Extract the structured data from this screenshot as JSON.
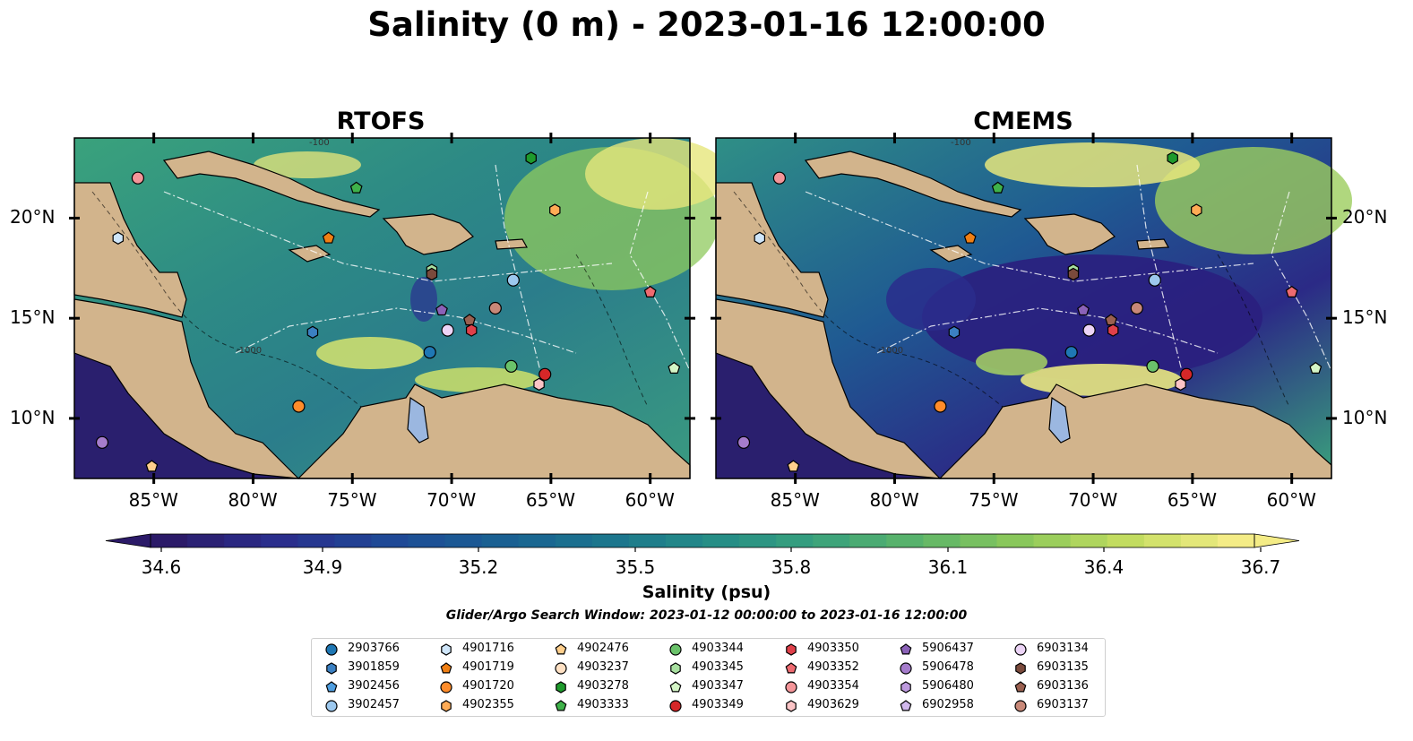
{
  "title": "Salinity (0 m) - 2023-01-16 12:00:00",
  "panels": [
    {
      "title": "RTOFS"
    },
    {
      "title": "CMEMS"
    }
  ],
  "map": {
    "lon_range": [
      -89,
      -58
    ],
    "lat_range": [
      7,
      24
    ],
    "lon_ticks": [
      {
        "value": -85,
        "label": "85°W"
      },
      {
        "value": -80,
        "label": "80°W"
      },
      {
        "value": -75,
        "label": "75°W"
      },
      {
        "value": -70,
        "label": "70°W"
      },
      {
        "value": -65,
        "label": "65°W"
      },
      {
        "value": -60,
        "label": "60°W"
      }
    ],
    "lat_ticks": [
      {
        "value": 10,
        "label": "10°N"
      },
      {
        "value": 15,
        "label": "15°N"
      },
      {
        "value": 20,
        "label": "20°N"
      }
    ],
    "contour_labels": [
      "-100",
      "-1000"
    ],
    "colors": {
      "ocean_deep": "#2a1f6e",
      "land": "#d2b48c",
      "lake": "#9bb7e0"
    }
  },
  "colorbar": {
    "label": "Salinity (psu)",
    "ticks": [
      "34.6",
      "34.9",
      "35.2",
      "35.5",
      "35.8",
      "36.1",
      "36.4",
      "36.7"
    ],
    "colors": [
      "#2b1a68",
      "#2a2d8c",
      "#1f4796",
      "#1a5e93",
      "#1b738e",
      "#238a88",
      "#37a07e",
      "#5bb46a",
      "#8cc85a",
      "#c4dd60",
      "#f4ec86"
    ]
  },
  "search_window": "Glider/Argo Search Window: 2023-01-12 00:00:00 to 2023-01-16 12:00:00",
  "legend": [
    {
      "id": "2903766",
      "marker": "circle",
      "color": "#1f77b4"
    },
    {
      "id": "3901859",
      "marker": "hexagon",
      "color": "#3b80c2"
    },
    {
      "id": "3902456",
      "marker": "pentagon",
      "color": "#4f9ee0"
    },
    {
      "id": "3902457",
      "marker": "circle",
      "color": "#9cc8ee"
    },
    {
      "id": "4901716",
      "marker": "hexagon",
      "color": "#cfe6fa"
    },
    {
      "id": "4901719",
      "marker": "pentagon",
      "color": "#f07f14"
    },
    {
      "id": "4901720",
      "marker": "circle",
      "color": "#ff8c2a"
    },
    {
      "id": "4902355",
      "marker": "hexagon",
      "color": "#ffab55"
    },
    {
      "id": "4902476",
      "marker": "pentagon",
      "color": "#ffcf8c"
    },
    {
      "id": "4903237",
      "marker": "circle",
      "color": "#ffe1c4"
    },
    {
      "id": "4903278",
      "marker": "hexagon",
      "color": "#1e9a2c"
    },
    {
      "id": "4903333",
      "marker": "pentagon",
      "color": "#3fb24a"
    },
    {
      "id": "4903344",
      "marker": "circle",
      "color": "#6ac26a"
    },
    {
      "id": "4903345",
      "marker": "hexagon",
      "color": "#a8e0a0"
    },
    {
      "id": "4903347",
      "marker": "pentagon",
      "color": "#d4f5c6"
    },
    {
      "id": "4903349",
      "marker": "circle",
      "color": "#d62728"
    },
    {
      "id": "4903350",
      "marker": "hexagon",
      "color": "#e0404a"
    },
    {
      "id": "4903352",
      "marker": "pentagon",
      "color": "#ee6a70"
    },
    {
      "id": "4903354",
      "marker": "circle",
      "color": "#f49599"
    },
    {
      "id": "4903629",
      "marker": "hexagon",
      "color": "#fbc4c6"
    },
    {
      "id": "5906437",
      "marker": "pentagon",
      "color": "#8b62b8"
    },
    {
      "id": "5906478",
      "marker": "circle",
      "color": "#a57ccc"
    },
    {
      "id": "5906480",
      "marker": "hexagon",
      "color": "#bd9ade"
    },
    {
      "id": "6902958",
      "marker": "pentagon",
      "color": "#d1b8ec"
    },
    {
      "id": "6903134",
      "marker": "circle",
      "color": "#ecd4f6"
    },
    {
      "id": "6903135",
      "marker": "hexagon",
      "color": "#7a4a3c"
    },
    {
      "id": "6903136",
      "marker": "pentagon",
      "color": "#9a6050"
    },
    {
      "id": "6903137",
      "marker": "circle",
      "color": "#c88878"
    }
  ],
  "floats": [
    {
      "id": "4903354",
      "lon": -85.8,
      "lat": 22.0
    },
    {
      "id": "4903278",
      "lon": -66.0,
      "lat": 23.0
    },
    {
      "id": "4903333",
      "lon": -74.8,
      "lat": 21.5
    },
    {
      "id": "4902355",
      "lon": -64.8,
      "lat": 20.4
    },
    {
      "id": "4901716",
      "lon": -86.8,
      "lat": 19.0
    },
    {
      "id": "4901719",
      "lon": -76.2,
      "lat": 19.0
    },
    {
      "id": "4903345",
      "lon": -71.0,
      "lat": 17.4
    },
    {
      "id": "6903135",
      "lon": -71.0,
      "lat": 17.2
    },
    {
      "id": "3902457",
      "lon": -66.9,
      "lat": 16.9
    },
    {
      "id": "4903352",
      "lon": -60.0,
      "lat": 16.3
    },
    {
      "id": "6903137",
      "lon": -67.8,
      "lat": 15.5
    },
    {
      "id": "5906437",
      "lon": -70.5,
      "lat": 15.4
    },
    {
      "id": "6903136",
      "lon": -69.1,
      "lat": 14.9
    },
    {
      "id": "6903134",
      "lon": -70.2,
      "lat": 14.4
    },
    {
      "id": "4903350",
      "lon": -69.0,
      "lat": 14.4
    },
    {
      "id": "3901859",
      "lon": -77.0,
      "lat": 14.3
    },
    {
      "id": "2903766",
      "lon": -71.1,
      "lat": 13.3
    },
    {
      "id": "4903344",
      "lon": -67.0,
      "lat": 12.6
    },
    {
      "id": "4903349",
      "lon": -65.3,
      "lat": 12.2
    },
    {
      "id": "4903629",
      "lon": -65.6,
      "lat": 11.7
    },
    {
      "id": "4903347",
      "lon": -58.8,
      "lat": 12.5
    },
    {
      "id": "4901720",
      "lon": -77.7,
      "lat": 10.6
    },
    {
      "id": "5906478",
      "lon": -87.6,
      "lat": 8.8
    },
    {
      "id": "4902476",
      "lon": -85.1,
      "lat": 7.6
    }
  ]
}
